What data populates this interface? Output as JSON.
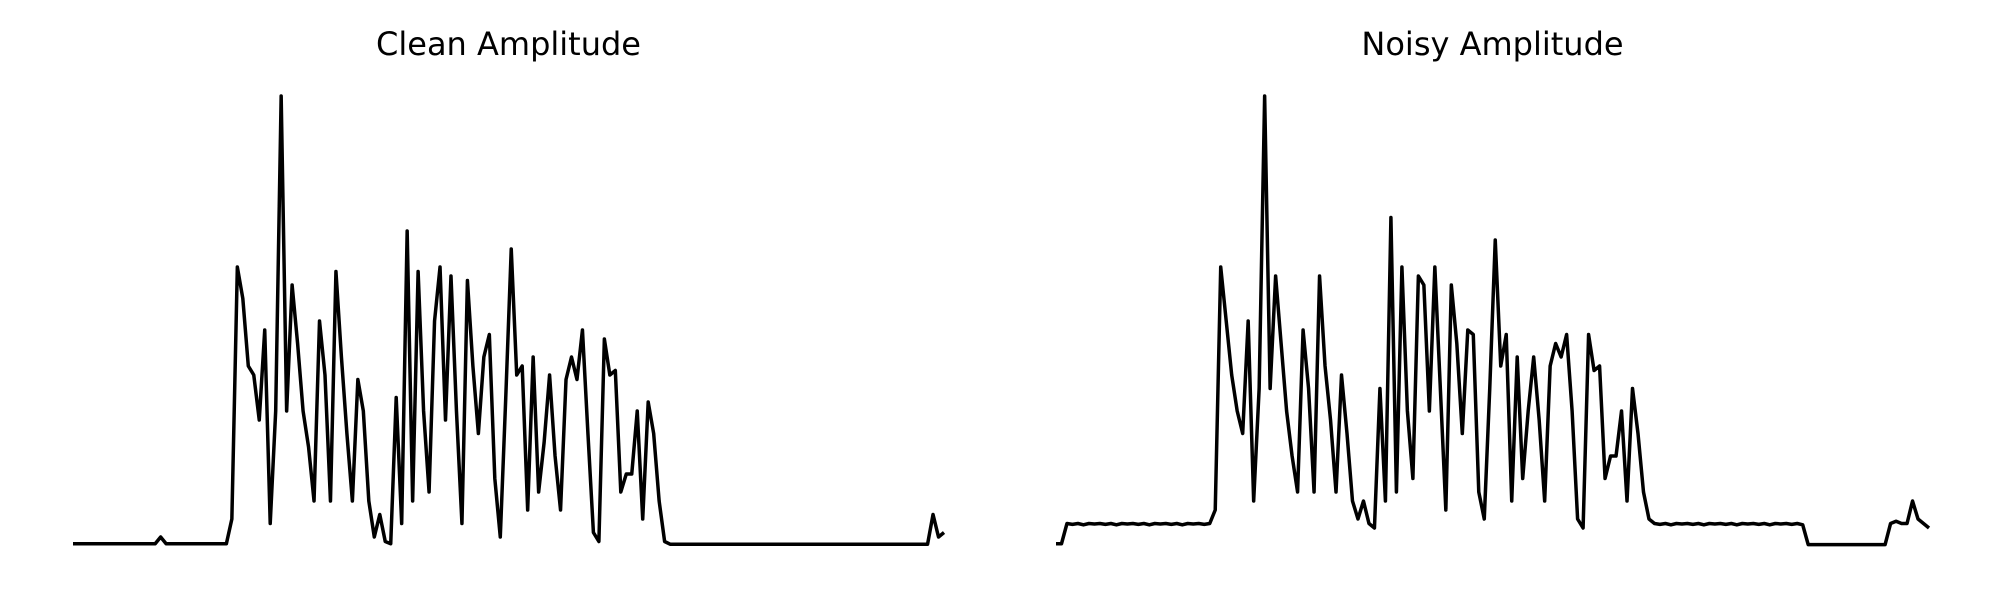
{
  "chart_data": [
    {
      "type": "line",
      "title": "Clean Amplitude",
      "color": "#000000",
      "ylim": [
        0,
        1
      ],
      "values": [
        0.005,
        0.005,
        0.005,
        0.005,
        0.005,
        0.005,
        0.005,
        0.005,
        0.005,
        0.005,
        0.005,
        0.005,
        0.005,
        0.005,
        0.005,
        0.005,
        0.02,
        0.005,
        0.005,
        0.005,
        0.005,
        0.005,
        0.005,
        0.005,
        0.005,
        0.005,
        0.005,
        0.005,
        0.005,
        0.06,
        0.62,
        0.55,
        0.4,
        0.38,
        0.28,
        0.48,
        0.05,
        0.3,
        1.0,
        0.3,
        0.58,
        0.45,
        0.3,
        0.22,
        0.1,
        0.5,
        0.38,
        0.1,
        0.61,
        0.42,
        0.25,
        0.1,
        0.37,
        0.3,
        0.1,
        0.02,
        0.07,
        0.01,
        0.005,
        0.33,
        0.05,
        0.7,
        0.1,
        0.61,
        0.3,
        0.12,
        0.5,
        0.62,
        0.28,
        0.6,
        0.3,
        0.05,
        0.59,
        0.4,
        0.25,
        0.42,
        0.47,
        0.15,
        0.02,
        0.33,
        0.66,
        0.38,
        0.4,
        0.08,
        0.42,
        0.12,
        0.23,
        0.38,
        0.2,
        0.08,
        0.37,
        0.42,
        0.37,
        0.48,
        0.25,
        0.03,
        0.01,
        0.46,
        0.38,
        0.39,
        0.12,
        0.16,
        0.16,
        0.3,
        0.06,
        0.32,
        0.25,
        0.1,
        0.01,
        0.004,
        0.004,
        0.004,
        0.004,
        0.004,
        0.004,
        0.004,
        0.004,
        0.004,
        0.004,
        0.004,
        0.004,
        0.004,
        0.004,
        0.004,
        0.004,
        0.004,
        0.004,
        0.004,
        0.004,
        0.004,
        0.004,
        0.004,
        0.004,
        0.004,
        0.004,
        0.004,
        0.004,
        0.004,
        0.004,
        0.004,
        0.004,
        0.004,
        0.004,
        0.004,
        0.004,
        0.004,
        0.004,
        0.004,
        0.004,
        0.004,
        0.004,
        0.004,
        0.004,
        0.004,
        0.004,
        0.004,
        0.004,
        0.07,
        0.02,
        0.03
      ]
    },
    {
      "type": "line",
      "title": "Noisy Amplitude",
      "color": "#000000",
      "ylim": [
        0,
        1
      ],
      "values": [
        0.005,
        0.005,
        0.05,
        0.048,
        0.05,
        0.047,
        0.05,
        0.049,
        0.05,
        0.048,
        0.05,
        0.047,
        0.05,
        0.049,
        0.05,
        0.048,
        0.05,
        0.047,
        0.05,
        0.049,
        0.05,
        0.048,
        0.05,
        0.047,
        0.05,
        0.049,
        0.05,
        0.048,
        0.05,
        0.08,
        0.62,
        0.5,
        0.38,
        0.3,
        0.25,
        0.5,
        0.1,
        0.35,
        1.0,
        0.35,
        0.6,
        0.45,
        0.3,
        0.2,
        0.12,
        0.48,
        0.35,
        0.12,
        0.6,
        0.4,
        0.28,
        0.12,
        0.38,
        0.25,
        0.1,
        0.06,
        0.1,
        0.05,
        0.04,
        0.35,
        0.1,
        0.73,
        0.12,
        0.62,
        0.3,
        0.15,
        0.6,
        0.58,
        0.3,
        0.62,
        0.35,
        0.08,
        0.58,
        0.45,
        0.25,
        0.48,
        0.47,
        0.12,
        0.06,
        0.35,
        0.68,
        0.4,
        0.47,
        0.1,
        0.42,
        0.15,
        0.3,
        0.42,
        0.28,
        0.1,
        0.4,
        0.45,
        0.42,
        0.47,
        0.3,
        0.06,
        0.04,
        0.47,
        0.39,
        0.4,
        0.15,
        0.2,
        0.2,
        0.3,
        0.1,
        0.35,
        0.25,
        0.12,
        0.06,
        0.05,
        0.048,
        0.05,
        0.047,
        0.05,
        0.049,
        0.05,
        0.048,
        0.05,
        0.047,
        0.05,
        0.049,
        0.05,
        0.048,
        0.05,
        0.047,
        0.05,
        0.049,
        0.05,
        0.048,
        0.05,
        0.047,
        0.05,
        0.049,
        0.05,
        0.048,
        0.05,
        0.047,
        0.003,
        0.003,
        0.003,
        0.003,
        0.003,
        0.003,
        0.003,
        0.003,
        0.003,
        0.003,
        0.003,
        0.003,
        0.003,
        0.003,
        0.003,
        0.05,
        0.055,
        0.05,
        0.05,
        0.1,
        0.06,
        0.05,
        0.04
      ]
    }
  ]
}
